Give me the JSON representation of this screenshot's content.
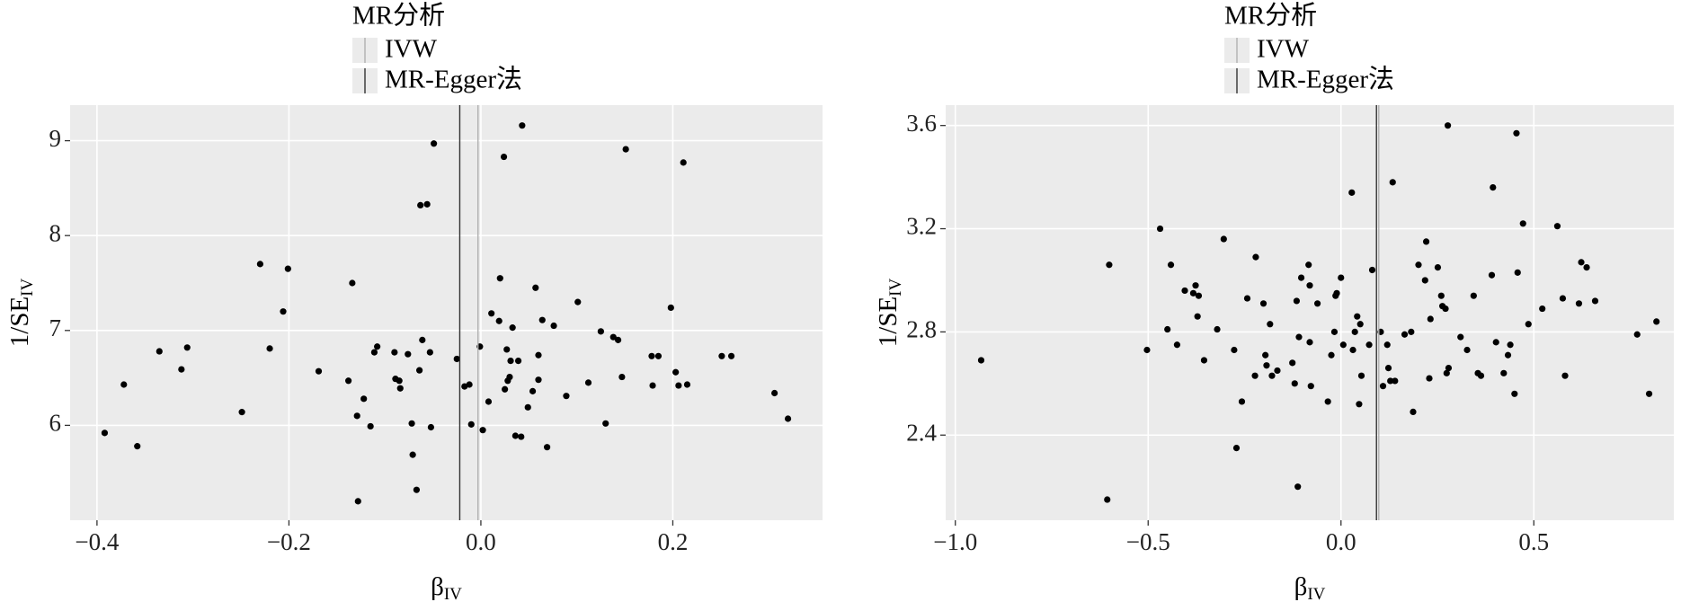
{
  "chart_data": [
    {
      "type": "scatter",
      "legend_title": "MR分析",
      "xlabel": "β",
      "xlabel_sub": "IV",
      "ylabel": "1/SE",
      "ylabel_sub": "IV",
      "color": "#000000",
      "background": "#ebebeb",
      "grid": true,
      "xlim": [
        -0.428,
        0.356
      ],
      "ylim": [
        5.0,
        9.375
      ],
      "xticks": [
        {
          "value": -0.4,
          "label": "−0.4"
        },
        {
          "value": -0.2,
          "label": "−0.2"
        },
        {
          "value": 0,
          "label": "0.0"
        },
        0.2
      ],
      "yticks": [
        6,
        7,
        8,
        9
      ],
      "vlines": [
        {
          "name": "IVW",
          "color": "#b0b0b0",
          "x": -0.003
        },
        {
          "name": "MR-Egger法",
          "color": "#333333",
          "x": -0.022
        }
      ],
      "x": [
        -0.392,
        -0.372,
        -0.358,
        -0.335,
        -0.312,
        -0.306,
        -0.249,
        -0.23,
        -0.22,
        -0.206,
        -0.201,
        -0.169,
        -0.138,
        -0.134,
        -0.129,
        -0.128,
        -0.122,
        -0.115,
        -0.111,
        -0.108,
        -0.09,
        -0.089,
        -0.085,
        -0.084,
        -0.076,
        -0.072,
        -0.071,
        -0.067,
        -0.064,
        -0.063,
        -0.061,
        -0.056,
        -0.053,
        -0.052,
        -0.049,
        -0.025,
        -0.017,
        -0.012,
        -0.01,
        -0.001,
        0.002,
        0.008,
        0.011,
        0.019,
        0.02,
        0.024,
        0.025,
        0.027,
        0.028,
        0.03,
        0.031,
        0.033,
        0.036,
        0.039,
        0.042,
        0.043,
        0.049,
        0.054,
        0.057,
        0.06,
        0.06,
        0.064,
        0.069,
        0.076,
        0.089,
        0.101,
        0.112,
        0.125,
        0.13,
        0.138,
        0.143,
        0.147,
        0.151,
        0.178,
        0.179,
        0.185,
        0.198,
        0.203,
        0.206,
        0.211,
        0.215,
        0.251,
        0.261,
        0.306,
        0.32
      ],
      "values": [
        5.92,
        6.43,
        5.78,
        6.78,
        6.59,
        6.82,
        6.14,
        7.7,
        6.81,
        7.2,
        7.65,
        6.57,
        6.47,
        7.5,
        6.1,
        5.2,
        6.28,
        5.99,
        6.77,
        6.83,
        6.77,
        6.49,
        6.47,
        6.39,
        6.75,
        6.02,
        5.69,
        5.32,
        6.58,
        8.32,
        6.9,
        8.33,
        6.77,
        5.98,
        8.97,
        6.7,
        6.41,
        6.43,
        6.01,
        6.83,
        5.95,
        6.25,
        7.18,
        7.1,
        7.55,
        8.83,
        6.38,
        6.8,
        6.47,
        6.51,
        6.68,
        7.03,
        5.89,
        6.68,
        5.88,
        9.16,
        6.19,
        6.36,
        7.45,
        6.74,
        6.48,
        7.11,
        5.77,
        7.05,
        6.31,
        7.3,
        6.45,
        6.99,
        6.02,
        6.93,
        6.9,
        6.51,
        8.91,
        6.73,
        6.42,
        6.73,
        7.24,
        6.56,
        6.42,
        8.77,
        6.43,
        6.73,
        6.73,
        6.34,
        6.07
      ]
    },
    {
      "type": "scatter",
      "legend_title": "MR分析",
      "xlabel": "β",
      "xlabel_sub": "IV",
      "ylabel": "1/SE",
      "ylabel_sub": "IV",
      "color": "#000000",
      "background": "#ebebeb",
      "grid": true,
      "xlim": [
        -1.025,
        0.863
      ],
      "ylim": [
        2.07,
        3.679
      ],
      "xticks": [
        {
          "value": -1.0,
          "label": "−1.0"
        },
        {
          "value": -0.5,
          "label": "−0.5"
        },
        {
          "value": 0,
          "label": "0.0"
        },
        0.5
      ],
      "yticks": [
        2.4,
        2.8,
        3.2,
        3.6
      ],
      "vlines": [
        {
          "name": "IVW",
          "color": "#b0b0b0",
          "x": 0.098
        },
        {
          "name": "MR-Egger法",
          "color": "#333333",
          "x": 0.092
        }
      ],
      "x": [
        -0.933,
        -0.606,
        -0.601,
        -0.503,
        -0.469,
        -0.45,
        -0.441,
        -0.425,
        -0.405,
        -0.383,
        -0.377,
        -0.372,
        -0.369,
        -0.355,
        -0.321,
        -0.304,
        -0.277,
        -0.271,
        -0.257,
        -0.243,
        -0.223,
        -0.221,
        -0.201,
        -0.196,
        -0.193,
        -0.184,
        -0.179,
        -0.165,
        -0.126,
        -0.12,
        -0.115,
        -0.112,
        -0.109,
        -0.103,
        -0.084,
        -0.081,
        -0.081,
        -0.078,
        -0.061,
        -0.034,
        -0.025,
        -0.017,
        -0.014,
        -0.011,
        0.0,
        0.006,
        0.028,
        0.031,
        0.036,
        0.042,
        0.047,
        0.05,
        0.053,
        0.073,
        0.081,
        0.103,
        0.109,
        0.12,
        0.123,
        0.128,
        0.134,
        0.14,
        0.165,
        0.182,
        0.187,
        0.201,
        0.218,
        0.221,
        0.229,
        0.232,
        0.251,
        0.26,
        0.263,
        0.271,
        0.274,
        0.277,
        0.279,
        0.31,
        0.327,
        0.344,
        0.355,
        0.363,
        0.391,
        0.394,
        0.402,
        0.422,
        0.433,
        0.439,
        0.45,
        0.455,
        0.458,
        0.472,
        0.486,
        0.522,
        0.561,
        0.575,
        0.581,
        0.617,
        0.623,
        0.637,
        0.659,
        0.768,
        0.799,
        0.818
      ],
      "values": [
        2.69,
        2.15,
        3.06,
        2.73,
        3.2,
        2.81,
        3.06,
        2.75,
        2.96,
        2.95,
        2.98,
        2.86,
        2.94,
        2.69,
        2.81,
        3.16,
        2.73,
        2.35,
        2.53,
        2.93,
        2.63,
        3.09,
        2.91,
        2.71,
        2.67,
        2.83,
        2.63,
        2.65,
        2.68,
        2.6,
        2.92,
        2.2,
        2.78,
        3.01,
        3.06,
        2.98,
        2.76,
        2.59,
        2.91,
        2.53,
        2.71,
        2.8,
        2.94,
        2.95,
        3.01,
        2.75,
        3.34,
        2.73,
        2.8,
        2.86,
        2.52,
        2.83,
        2.63,
        2.75,
        3.04,
        2.8,
        2.59,
        2.75,
        2.66,
        2.61,
        3.38,
        2.61,
        2.79,
        2.8,
        2.49,
        3.06,
        3.0,
        3.15,
        2.62,
        2.85,
        3.05,
        2.94,
        2.9,
        2.89,
        2.64,
        3.6,
        2.66,
        2.78,
        2.73,
        2.94,
        2.64,
        2.63,
        3.02,
        3.36,
        2.76,
        2.64,
        2.71,
        2.75,
        2.56,
        3.57,
        3.03,
        3.22,
        2.83,
        2.89,
        3.21,
        2.93,
        2.63,
        2.91,
        3.07,
        3.05,
        2.92,
        2.79,
        2.56,
        2.84
      ]
    }
  ]
}
